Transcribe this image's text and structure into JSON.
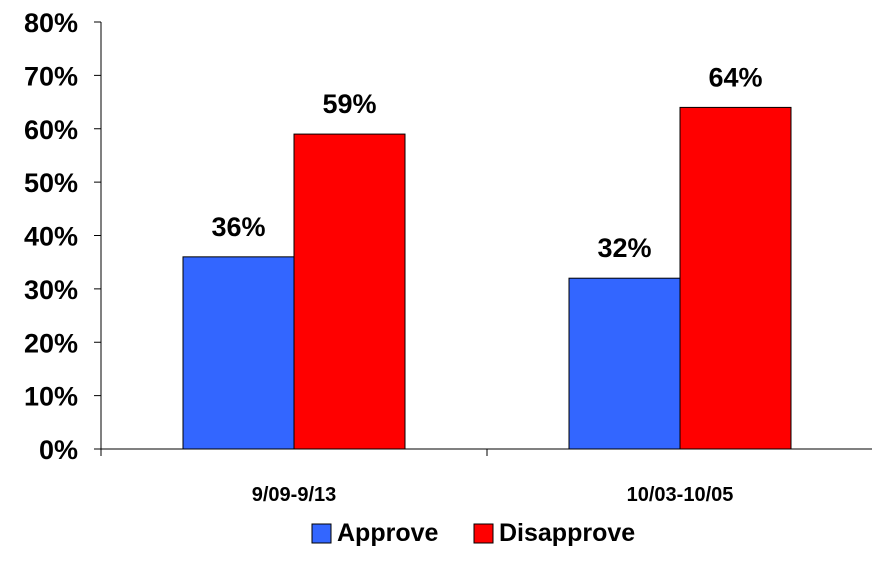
{
  "chart_data": {
    "type": "bar",
    "title": "",
    "xlabel": "",
    "ylabel": "",
    "categories": [
      "9/09-9/13",
      "10/03-10/05"
    ],
    "series": [
      {
        "name": "Approve",
        "values": [
          36,
          32
        ],
        "labels": [
          "36%",
          "32%"
        ],
        "color": "#3366FF"
      },
      {
        "name": "Disapprove",
        "values": [
          59,
          64
        ],
        "labels": [
          "59%",
          "64%"
        ],
        "color": "#FF0000"
      }
    ],
    "ylim": [
      0,
      80
    ],
    "yticks": [
      0,
      10,
      20,
      30,
      40,
      50,
      60,
      70,
      80
    ],
    "ytick_labels": [
      "0%",
      "10%",
      "20%",
      "30%",
      "40%",
      "50%",
      "60%",
      "70%",
      "80%"
    ],
    "grid": false,
    "legend": {
      "placement": "bottom-center"
    }
  }
}
